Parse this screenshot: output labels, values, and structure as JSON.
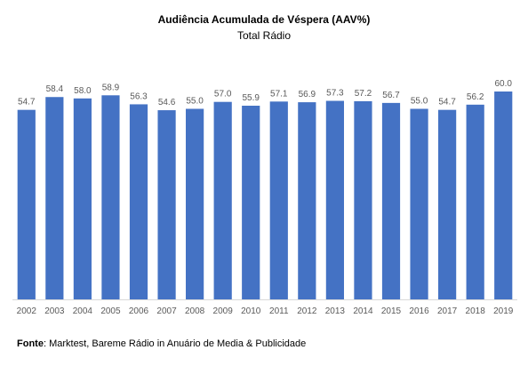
{
  "chart_data": {
    "type": "bar",
    "title": "Audiência Acumulada de Véspera (AAV%)",
    "subtitle": "Total Rádio",
    "categories": [
      "2002",
      "2003",
      "2004",
      "2005",
      "2006",
      "2007",
      "2008",
      "2009",
      "2010",
      "2011",
      "2012",
      "2013",
      "2014",
      "2015",
      "2016",
      "2017",
      "2018",
      "2019"
    ],
    "series": [
      {
        "values": [
          54.7,
          58.4,
          58.0,
          58.9,
          56.3,
          54.6,
          55.0,
          57.0,
          55.9,
          57.1,
          56.9,
          57.3,
          57.2,
          56.7,
          55.0,
          54.7,
          56.2,
          60.0
        ]
      }
    ],
    "value_labels": [
      "54.7",
      "58.4",
      "58.0",
      "58.9",
      "56.3",
      "54.6",
      "55.0",
      "57.0",
      "55.9",
      "57.1",
      "56.9",
      "57.3",
      "57.2",
      "56.7",
      "55.0",
      "54.7",
      "56.2",
      "60.0"
    ],
    "bar_color": "#4472C4",
    "grid": false,
    "legend": "none",
    "ylim": [
      0,
      60
    ]
  },
  "source": {
    "label": "Fonte",
    "text": ": Marktest, Bareme Rádio in Anuário de Media & Publicidade"
  }
}
